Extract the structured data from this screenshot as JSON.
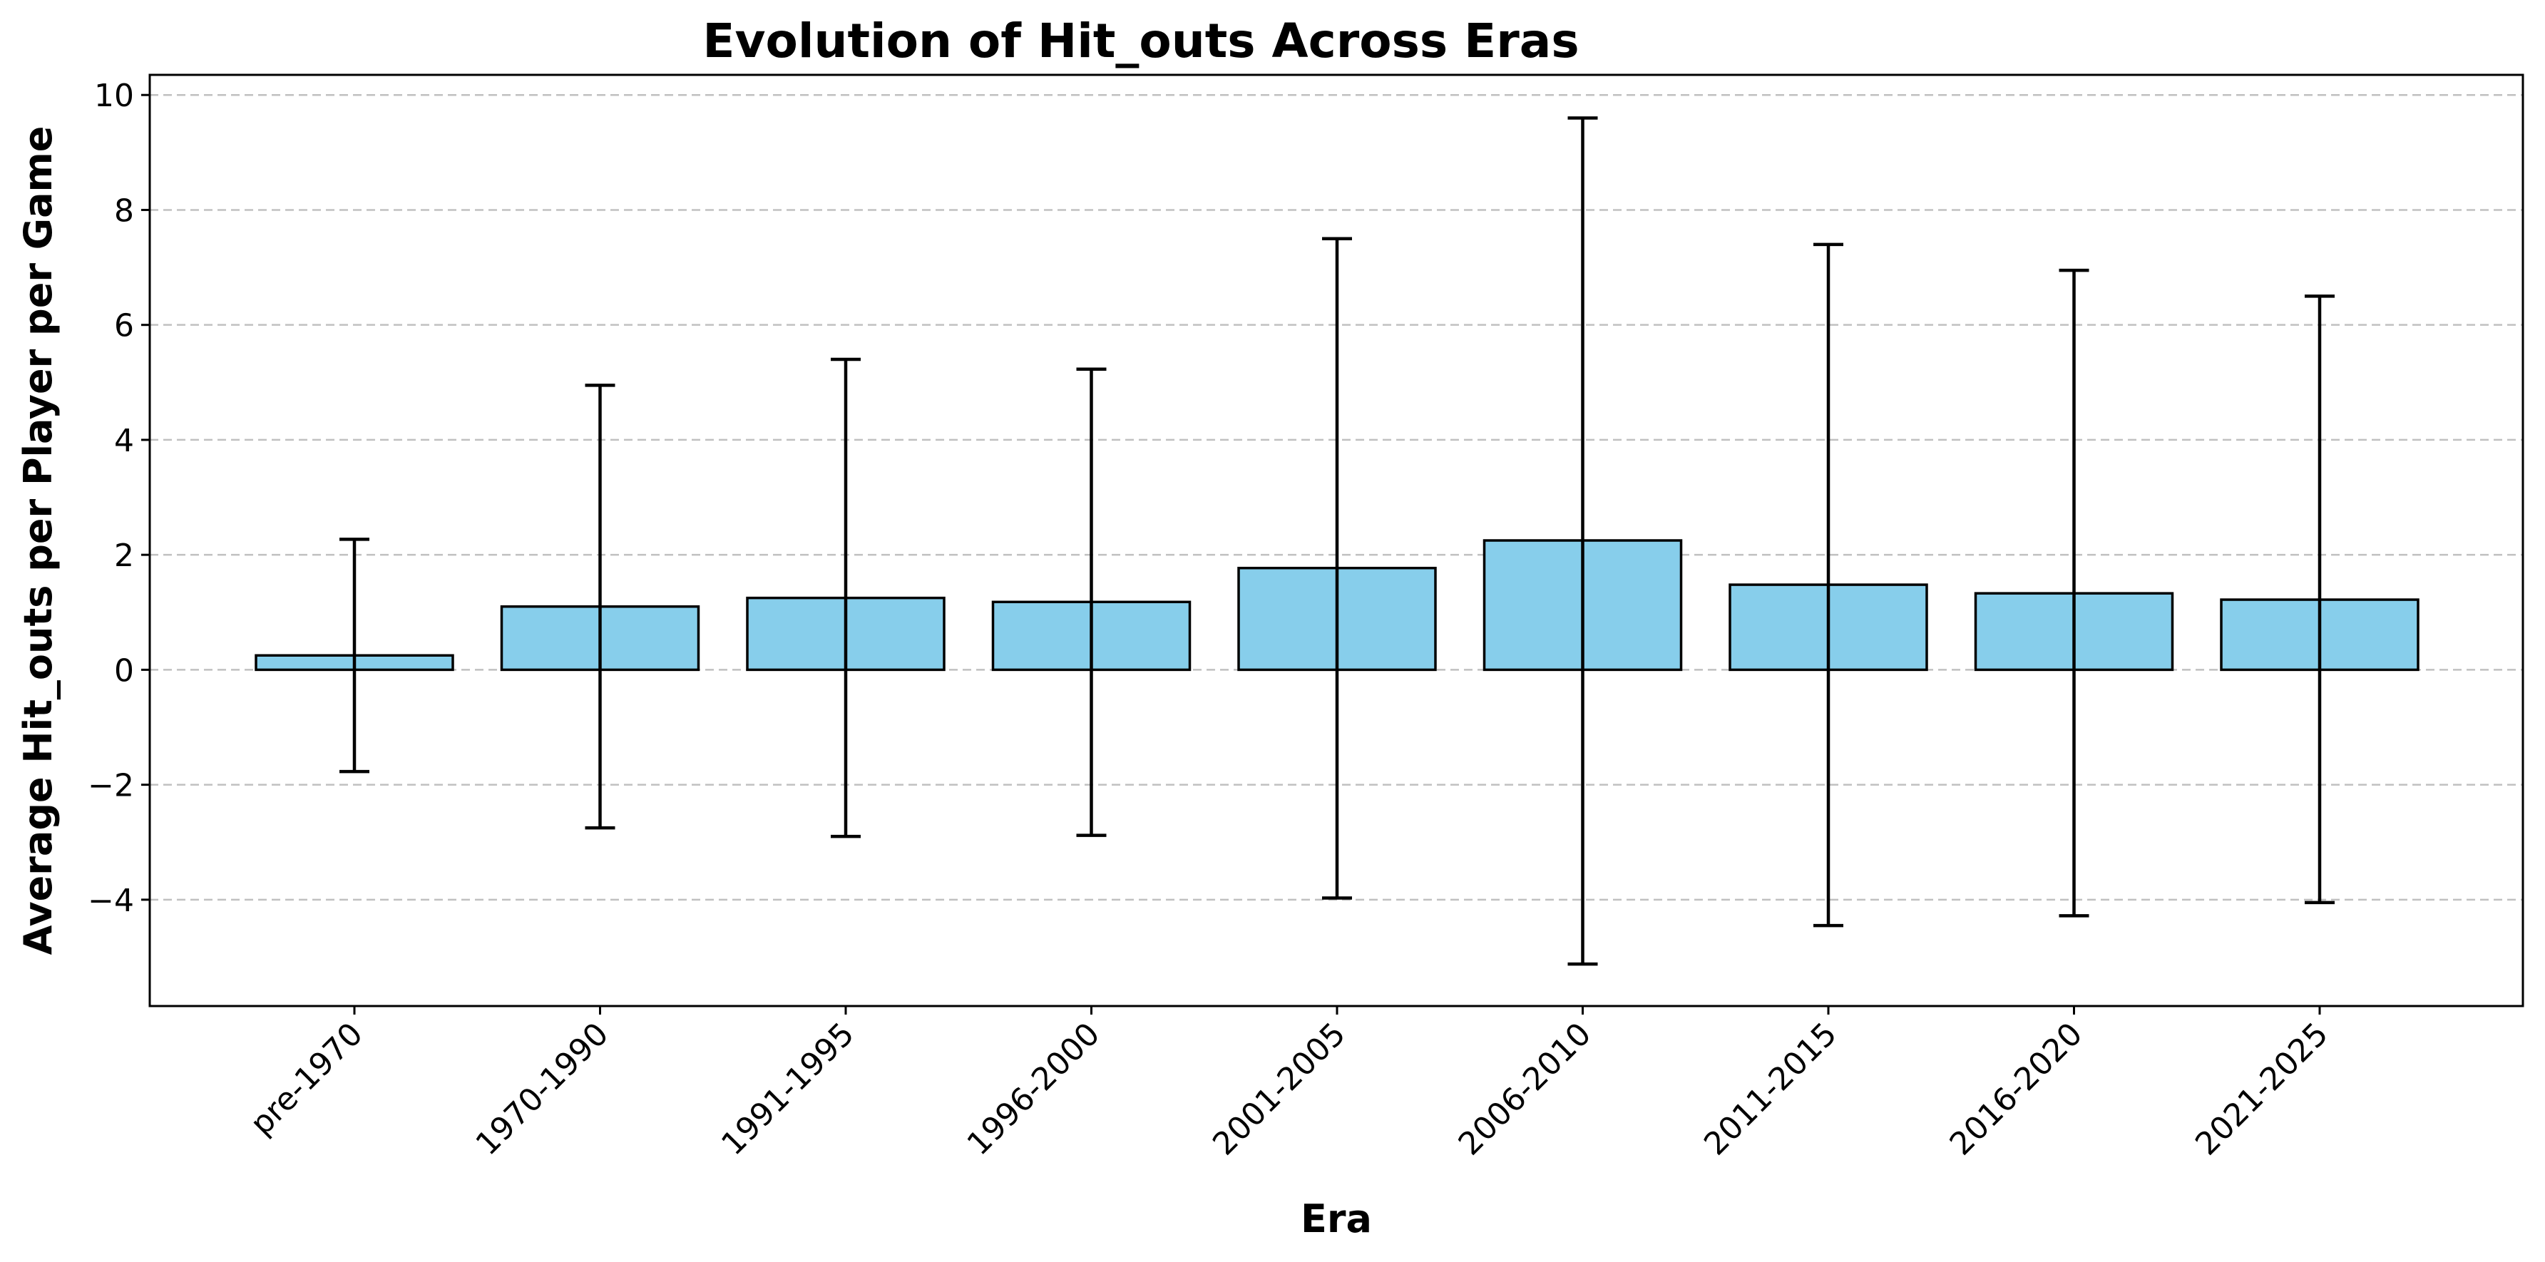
{
  "chart_data": {
    "type": "bar",
    "title": "Evolution of Hit_outs Across Eras",
    "xlabel": "Era",
    "ylabel": "Average Hit_outs per Player per Game",
    "categories": [
      "pre-1970",
      "1970-1990",
      "1991-1995",
      "1996-2000",
      "2001-2005",
      "2006-2010",
      "2011-2015",
      "2016-2020",
      "2021-2025"
    ],
    "values": [
      0.25,
      1.1,
      1.25,
      1.18,
      1.77,
      2.25,
      1.48,
      1.33,
      1.22
    ],
    "error_low": [
      -1.77,
      -2.75,
      -2.9,
      -2.88,
      -3.97,
      -5.12,
      -4.45,
      -4.28,
      -4.05
    ],
    "error_high": [
      2.27,
      4.95,
      5.4,
      5.23,
      7.5,
      9.6,
      7.4,
      6.95,
      6.5
    ],
    "yticks": [
      -4,
      -2,
      0,
      2,
      4,
      6,
      8,
      10
    ],
    "ylim": [
      -5.85,
      10.35
    ],
    "grid": "y-dashed",
    "colors": {
      "bar_fill": "#87CEEB",
      "bar_edge": "#000000",
      "error_bar": "#000000",
      "grid": "#c0c0c0"
    }
  }
}
